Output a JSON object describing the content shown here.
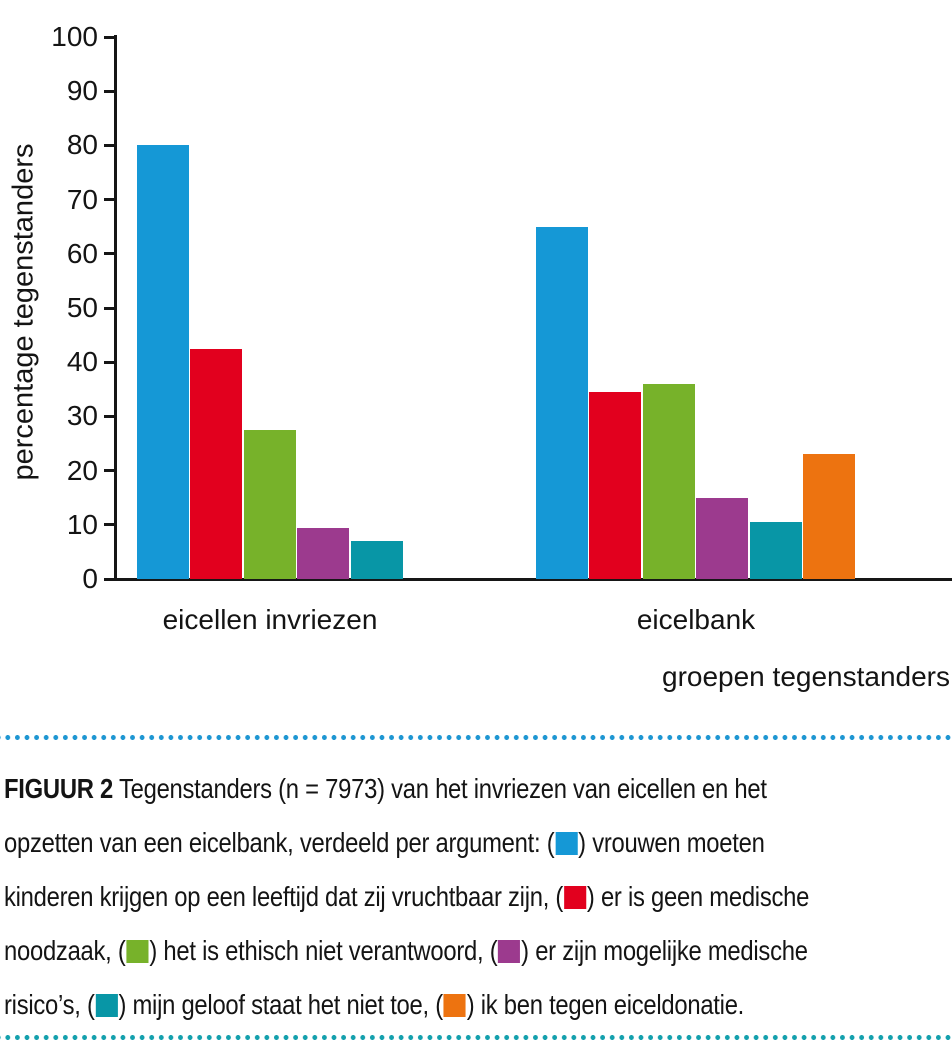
{
  "chart_data": {
    "type": "bar",
    "categories": [
      "eicellen invriezen",
      "eicelbank"
    ],
    "series": [
      {
        "name": "vrouwen moeten kinderen krijgen op een leeftijd dat zij vruchtbaar zijn",
        "color": "#1598d6",
        "values": [
          80,
          65
        ]
      },
      {
        "name": "er is geen medische noodzaak",
        "color": "#e2001e",
        "values": [
          42.5,
          34.5
        ]
      },
      {
        "name": "het is ethisch niet verantwoord",
        "color": "#77b22a",
        "values": [
          27.5,
          36
        ]
      },
      {
        "name": "er zijn mogelijke medische risico’s",
        "color": "#9c3a8e",
        "values": [
          9.5,
          15
        ]
      },
      {
        "name": "mijn geloof staat het niet toe",
        "color": "#0896a6",
        "values": [
          7,
          10.5
        ]
      },
      {
        "name": "ik ben tegen eiceldonatie",
        "color": "#ed7310",
        "values": [
          null,
          23
        ]
      }
    ],
    "title": "",
    "ylabel": "percentage tegenstanders",
    "xlabel": "groepen tegenstanders",
    "ylim": [
      0,
      100
    ],
    "yticks": [
      0,
      10,
      20,
      30,
      40,
      50,
      60,
      70,
      80,
      90,
      100
    ],
    "grid": false,
    "legend_position": "in-caption"
  },
  "separators": {
    "top_color": "#1e96d2",
    "bottom_color": "#14a0ad"
  },
  "caption": {
    "lines": [
      [
        {
          "b": "FIGUUR 2"
        },
        {
          "t": " Tegenstanders (n = 7973) van het invriezen van eicellen en het"
        }
      ],
      [
        {
          "t": "opzetten van een eicelbank, verdeeld per argument: ("
        },
        {
          "s": 0
        },
        {
          "t": ") vrouwen moeten"
        }
      ],
      [
        {
          "t": "kinderen krijgen op een leeftijd dat zij vruchtbaar zijn, ("
        },
        {
          "s": 1
        },
        {
          "t": ") er is geen medische"
        }
      ],
      [
        {
          "t": "noodzaak, ("
        },
        {
          "s": 2
        },
        {
          "t": ") het is ethisch niet verantwoord, ("
        },
        {
          "s": 3
        },
        {
          "t": ") er zijn mogelijke medische"
        }
      ],
      [
        {
          "t": "risico’s, ("
        },
        {
          "s": 4
        },
        {
          "t": ") mijn geloof staat het niet toe, ("
        },
        {
          "s": 5
        },
        {
          "t": ") ik ben tegen eiceldonatie."
        }
      ]
    ]
  }
}
